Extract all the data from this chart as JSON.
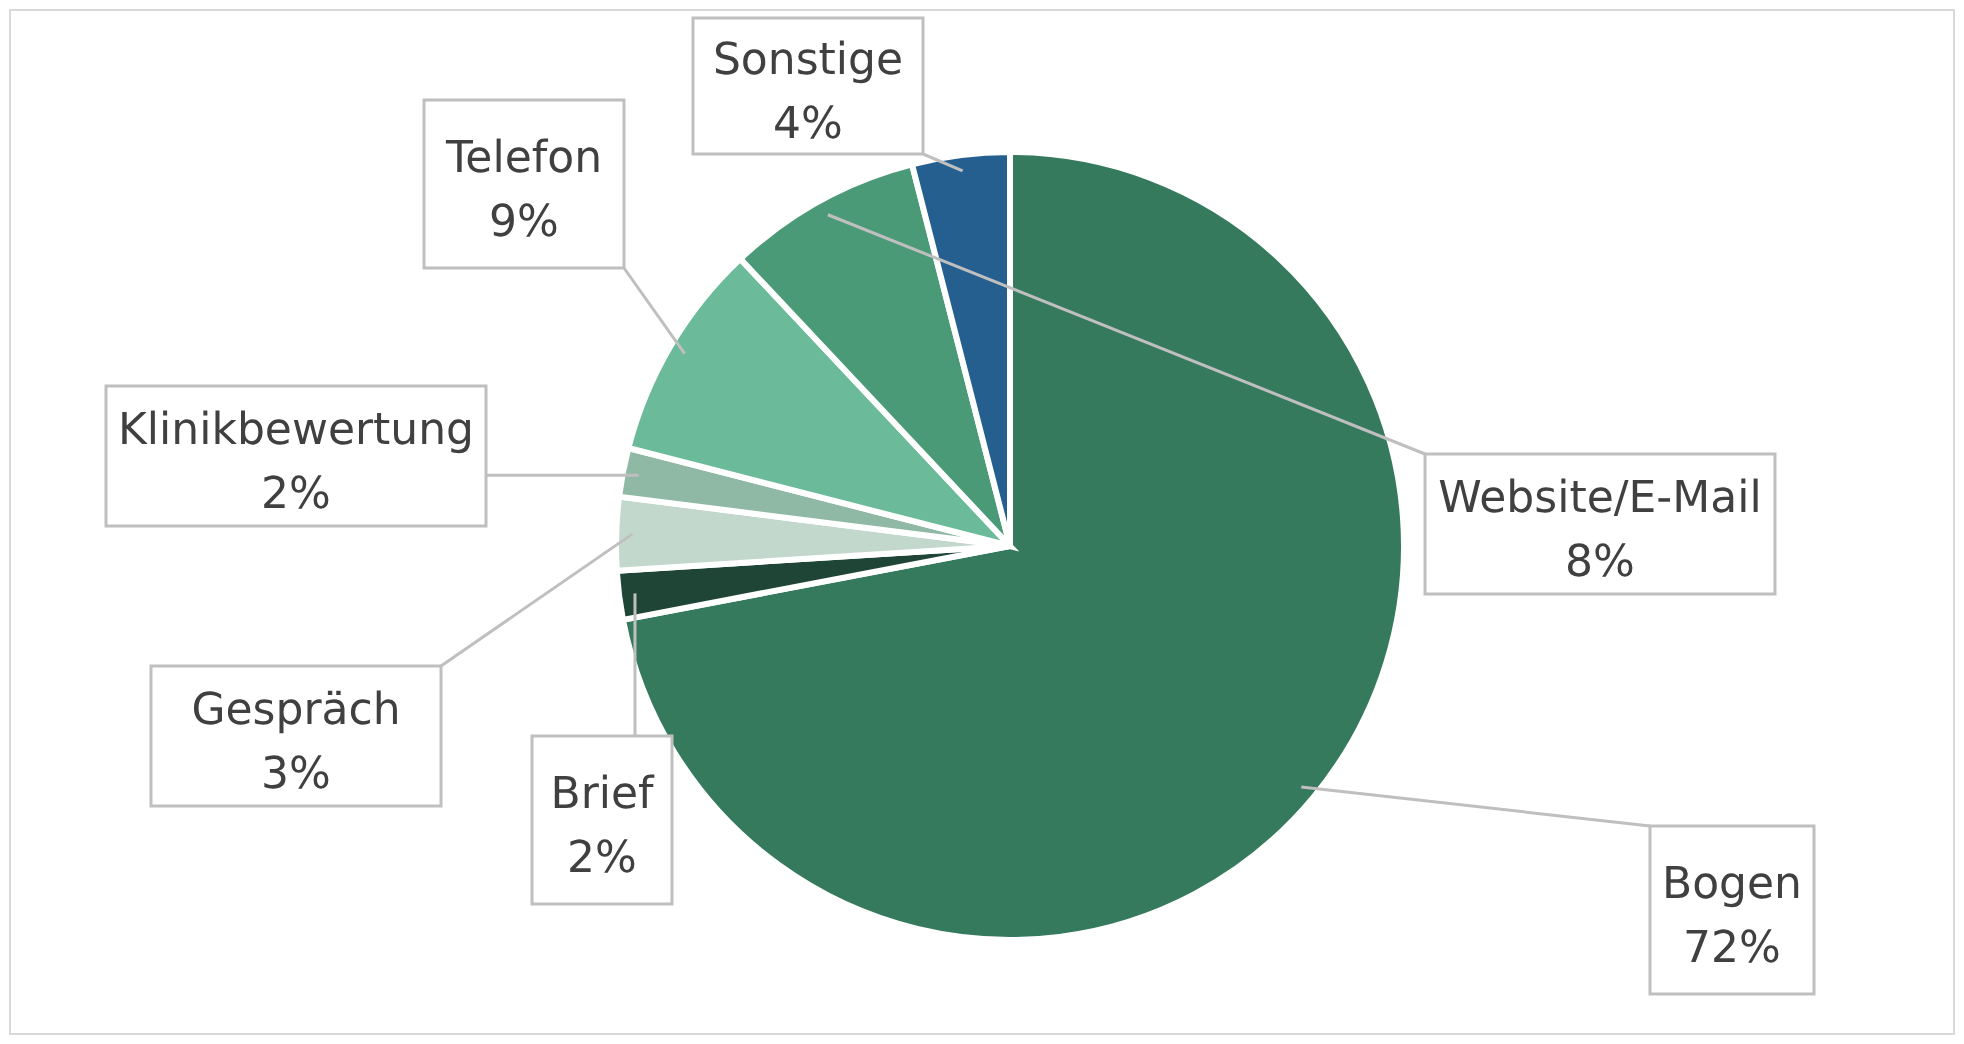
{
  "chart_data": {
    "type": "pie",
    "categories": [
      "Bogen",
      "Brief",
      "Gespräch",
      "Klinikbewertung",
      "Telefon",
      "Website/E-Mail",
      "Sonstige"
    ],
    "values": [
      72,
      2,
      3,
      2,
      9,
      8,
      4
    ],
    "value_labels": [
      "72%",
      "2%",
      "3%",
      "2%",
      "9%",
      "8%",
      "4%"
    ],
    "colors": [
      "#367a5e",
      "#1f4536",
      "#c3d8cc",
      "#8fb8a5",
      "#6bbb9a",
      "#4a9a78",
      "#245f90"
    ]
  }
}
